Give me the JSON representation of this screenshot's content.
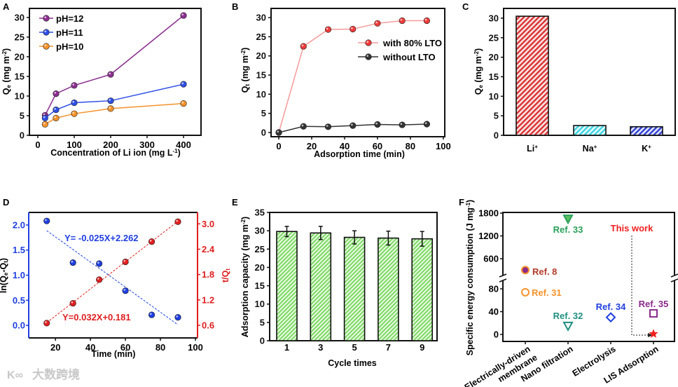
{
  "watermark": "大数跨境",
  "colors": {
    "pH12": "#8b2f8f",
    "pH11": "#2f4fe6",
    "pH10": "#f5922a",
    "with": "#f03a3a",
    "without": "#333333",
    "li": "#d93333",
    "na": "#3cd3e0",
    "k": "#2f3fd0",
    "green": "#74d65a",
    "blueAxis": "#1f3fe0",
    "redAxis": "#e01f1f"
  },
  "chart_data": [
    {
      "panel": "A",
      "type": "line",
      "xlabel": [
        {
          "t": "Concentration of Li ion (mg L",
          "s": ""
        },
        {
          "t": "-1",
          "s": "sup"
        },
        {
          "t": ")",
          "s": ""
        }
      ],
      "ylabel": [
        {
          "t": "Q",
          "s": ""
        },
        {
          "t": "e",
          "s": "sub"
        },
        {
          "t": " (mg m",
          "s": ""
        },
        {
          "t": "-2",
          "s": "sup"
        },
        {
          "t": ")",
          "s": ""
        }
      ],
      "xlim": [
        -23,
        448
      ],
      "ylim": [
        0,
        32.3
      ],
      "xticks": [
        "0",
        "100",
        "200",
        "300",
        "400"
      ],
      "yticks": [
        "0",
        "5",
        "10",
        "15",
        "20",
        "25",
        "30"
      ],
      "legend": "top-left",
      "x": [
        20,
        50,
        100,
        200,
        400
      ],
      "series": [
        {
          "name": "pH=12",
          "color": "#8b2f8f",
          "values": [
            5.1,
            10.6,
            12.7,
            15.5,
            30.5
          ]
        },
        {
          "name": "pH=11",
          "color": "#2f4fe6",
          "values": [
            4.4,
            6.5,
            8.3,
            8.8,
            13.0
          ]
        },
        {
          "name": "pH=10",
          "color": "#f5922a",
          "values": [
            2.8,
            4.4,
            5.5,
            6.8,
            8.1
          ]
        }
      ]
    },
    {
      "panel": "B",
      "type": "line",
      "xlabel": [
        {
          "t": "Adsorption time (min)",
          "s": ""
        }
      ],
      "ylabel": [
        {
          "t": "Q",
          "s": ""
        },
        {
          "t": "t",
          "s": "sub"
        },
        {
          "t": " (mg m",
          "s": ""
        },
        {
          "t": "-2",
          "s": "sup"
        },
        {
          "t": ")",
          "s": ""
        }
      ],
      "xlim": [
        -4.7,
        100.9
      ],
      "ylim": [
        -1.1,
        32.4
      ],
      "xticks": [
        "0",
        "20",
        "40",
        "60",
        "80",
        "100"
      ],
      "yticks": [
        "0",
        "5",
        "10",
        "15",
        "20",
        "25",
        "30"
      ],
      "legend": "center-right",
      "x": [
        0,
        15,
        30,
        45,
        60,
        75,
        90
      ],
      "series": [
        {
          "name": "with 80% LTO",
          "color": "#f03a3a",
          "values": [
            0,
            22.5,
            26.9,
            27.0,
            28.5,
            29.2,
            29.2
          ]
        },
        {
          "name": "without  LTO",
          "color": "#333333",
          "values": [
            0,
            1.6,
            1.5,
            1.8,
            2.1,
            2.0,
            2.2
          ]
        }
      ]
    },
    {
      "panel": "C",
      "type": "bar",
      "ylabel": [
        {
          "t": "Q",
          "s": ""
        },
        {
          "t": "e",
          "s": "sub"
        },
        {
          "t": " (mg m",
          "s": ""
        },
        {
          "t": "-2",
          "s": "sup"
        },
        {
          "t": ")",
          "s": ""
        }
      ],
      "ylim": [
        0,
        32.5
      ],
      "yticks": [
        "0",
        "5",
        "10",
        "15",
        "20",
        "25",
        "30"
      ],
      "categories": [
        [
          {
            "t": "Li",
            "s": ""
          },
          {
            "t": "+",
            "s": "sup"
          }
        ],
        [
          {
            "t": "Na",
            "s": ""
          },
          {
            "t": "+",
            "s": "sup"
          }
        ],
        [
          {
            "t": "K",
            "s": ""
          },
          {
            "t": "+",
            "s": "sup"
          }
        ]
      ],
      "values": [
        30.5,
        2.5,
        2.2
      ]
    },
    {
      "panel": "D",
      "type": "scatter",
      "xlabel": [
        {
          "t": "Time (min)",
          "s": ""
        }
      ],
      "ylabel": [
        {
          "t": "ln(Q",
          "s": ""
        },
        {
          "t": "e",
          "s": "sub"
        },
        {
          "t": "-Q",
          "s": ""
        },
        {
          "t": "t",
          "s": "sub"
        },
        {
          "t": ")",
          "s": ""
        }
      ],
      "y2label": [
        {
          "t": "t/Q",
          "s": ""
        },
        {
          "t": "t",
          "s": "sub"
        }
      ],
      "xlim": [
        4.7,
        101.2
      ],
      "ylim": [
        -0.25,
        2.25
      ],
      "y2lim": [
        0.3,
        3.27
      ],
      "xticks": [
        "20",
        "40",
        "60",
        "80",
        "100"
      ],
      "yticks": [
        "0.0",
        "0.5",
        "1.0",
        "1.5",
        "2.0"
      ],
      "y2ticks": [
        "0.6",
        "1.2",
        "1.8",
        "2.4",
        "3.0"
      ],
      "x": [
        15,
        30,
        45,
        60,
        75,
        90
      ],
      "series": [
        {
          "name": "ln(Qe-Qt)",
          "axis": "left",
          "color": "#1f3fe0",
          "values": [
            2.08,
            1.25,
            1.23,
            0.69,
            0.21,
            0.16
          ],
          "fit": {
            "slope": -0.025,
            "intercept": 2.262,
            "label": "Y= -0.025X+2.262"
          }
        },
        {
          "name": "t/Qt",
          "axis": "right",
          "color": "#e01f1f",
          "values": [
            0.65,
            1.12,
            1.68,
            2.1,
            2.58,
            3.05
          ],
          "fit": {
            "slope": 0.032,
            "intercept": 0.181,
            "label": "Y=0.032X+0.181"
          }
        }
      ]
    },
    {
      "panel": "E",
      "type": "bar",
      "xlabel": [
        {
          "t": "Cycle times",
          "s": ""
        }
      ],
      "ylabel": [
        {
          "t": "Adsorption capacity (mg m",
          "s": ""
        },
        {
          "t": "-2",
          "s": "sup"
        },
        {
          "t": ")",
          "s": ""
        }
      ],
      "ylim": [
        0,
        35
      ],
      "yticks": [
        "0",
        "5",
        "10",
        "15",
        "20",
        "25",
        "30",
        "35"
      ],
      "categories": [
        "1",
        "3",
        "5",
        "7",
        "9"
      ],
      "values": [
        29.8,
        29.4,
        28.2,
        28.0,
        27.8
      ],
      "errors": [
        1.4,
        1.8,
        1.8,
        1.9,
        2.0
      ]
    },
    {
      "panel": "F",
      "type": "scatter",
      "ylabel": [
        {
          "t": "Specific energy consumption (J mg",
          "s": ""
        },
        {
          "t": "-1",
          "s": "sup"
        },
        {
          "t": ")",
          "s": ""
        }
      ],
      "yticks_upper": [
        "600",
        "1200",
        "1800"
      ],
      "yticks_lower": [
        "0",
        "40",
        "80"
      ],
      "categories": [
        [
          "Electrically-driven",
          "membrane"
        ],
        [
          "Nano filtration"
        ],
        [
          "Electrolysis"
        ],
        [
          "LIS Adsorption"
        ]
      ],
      "points": [
        {
          "label": "Ref. 8",
          "category": 0,
          "value": 300,
          "marker": "filled-circle",
          "color": "#8a2a8a",
          "labelColor": "#b23a2a"
        },
        {
          "label": "Ref. 31",
          "category": 0,
          "value": 74,
          "marker": "open-circle",
          "color": "#f5922a",
          "labelColor": "#f5922a"
        },
        {
          "label": "Ref. 33",
          "category": 1,
          "value": 1650,
          "marker": "down-triangle",
          "color": "#2aa05a",
          "labelColor": "#2aa05a"
        },
        {
          "label": "Ref. 32",
          "category": 1,
          "value": 15,
          "marker": "open-down-triangle",
          "color": "#1f8f80",
          "labelColor": "#1f8f80"
        },
        {
          "label": "Ref. 34",
          "category": 2,
          "value": 30,
          "marker": "open-diamond",
          "color": "#1f3fe0",
          "labelColor": "#1f3fe0"
        },
        {
          "label": "Ref. 35",
          "category": 3,
          "value": 37,
          "marker": "open-square",
          "color": "#8a2a8a",
          "labelColor": "#8a2a8a"
        },
        {
          "label": "This work",
          "category": 3,
          "value": 1,
          "marker": "star",
          "color": "#f01f1f",
          "labelColor": "#f01f1f"
        }
      ]
    }
  ]
}
